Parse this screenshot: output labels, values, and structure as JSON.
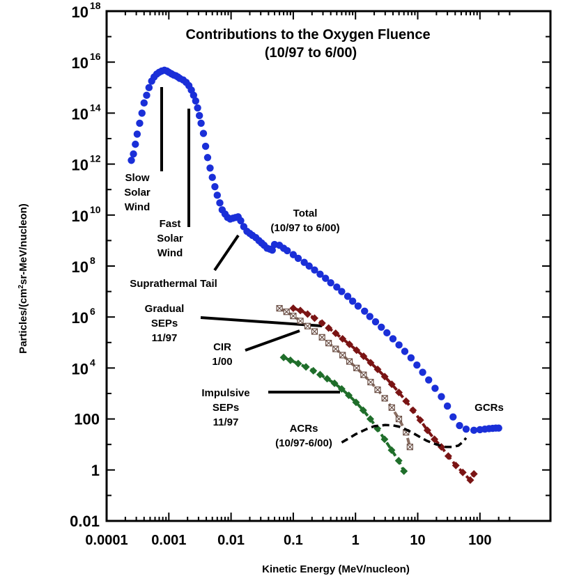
{
  "chart_data": {
    "type": "scatter",
    "title": "Contributions to the Oxygen Fluence",
    "subtitle": "(10/97 to 6/00)",
    "xlabel": "Kinetic Energy (MeV/nucleon)",
    "ylabel": "Particles/(cm²sr-MeV/nucleon)",
    "xscale": "log",
    "yscale": "log",
    "xlim": [
      0.0001,
      300
    ],
    "ylim": [
      0.01,
      1e+18
    ],
    "x_ticks": [
      {
        "value": 0.0001,
        "label": "0.0001"
      },
      {
        "value": 0.001,
        "label": "0.001"
      },
      {
        "value": 0.01,
        "label": "0.01"
      },
      {
        "value": 0.1,
        "label": "0.1"
      },
      {
        "value": 1,
        "label": "1"
      },
      {
        "value": 10,
        "label": "10"
      },
      {
        "value": 100,
        "label": "100"
      }
    ],
    "y_ticks": [
      {
        "value": 0.01,
        "base": "0.01",
        "exp": ""
      },
      {
        "value": 1,
        "base": "1",
        "exp": ""
      },
      {
        "value": 100,
        "base": "100",
        "exp": ""
      },
      {
        "value": 10000,
        "base": "10",
        "exp": "4"
      },
      {
        "value": 1000000,
        "base": "10",
        "exp": "6"
      },
      {
        "value": 100000000,
        "base": "10",
        "exp": "8"
      },
      {
        "value": 10000000000,
        "base": "10",
        "exp": "10"
      },
      {
        "value": 1000000000000,
        "base": "10",
        "exp": "12"
      },
      {
        "value": 100000000000000,
        "base": "10",
        "exp": "14"
      },
      {
        "value": 10000000000000000,
        "base": "10",
        "exp": "16"
      },
      {
        "value": 1000000000000000000,
        "base": "10",
        "exp": "18"
      }
    ],
    "series": [
      {
        "name": "Total (10/97 to 6/00)",
        "color": "#1a2fd8",
        "marker": "circle",
        "points": [
          [
            0.00025,
            1400000000000.0
          ],
          [
            0.00027,
            2500000000000.0
          ],
          [
            0.00029,
            6000000000000.0
          ],
          [
            0.00031,
            15000000000000.0
          ],
          [
            0.00034,
            40000000000000.0
          ],
          [
            0.00037,
            100000000000000.0
          ],
          [
            0.0004,
            250000000000000.0
          ],
          [
            0.00044,
            500000000000000.0
          ],
          [
            0.00048,
            1000000000000000.0
          ],
          [
            0.00053,
            1800000000000000.0
          ],
          [
            0.00058,
            2600000000000000.0
          ],
          [
            0.00064,
            3400000000000000.0
          ],
          [
            0.0007,
            4000000000000000.0
          ],
          [
            0.00077,
            4500000000000000.0
          ],
          [
            0.00085,
            4800000000000000.0
          ],
          [
            0.00093,
            4500000000000000.0
          ],
          [
            0.001,
            4000000000000000.0
          ],
          [
            0.0011,
            3500000000000000.0
          ],
          [
            0.0012,
            3100000000000000.0
          ],
          [
            0.0013,
            2900000000000000.0
          ],
          [
            0.0014,
            2600000000000000.0
          ],
          [
            0.0015,
            2300000000000000.0
          ],
          [
            0.0017,
            2000000000000000.0
          ],
          [
            0.0019,
            1600000000000000.0
          ],
          [
            0.0021,
            1200000000000000.0
          ],
          [
            0.0023,
            800000000000000.0
          ],
          [
            0.0025,
            500000000000000.0
          ],
          [
            0.0027,
            300000000000000.0
          ],
          [
            0.0029,
            160000000000000.0
          ],
          [
            0.0031,
            80000000000000.0
          ],
          [
            0.0033,
            40000000000000.0
          ],
          [
            0.0036,
            16000000000000.0
          ],
          [
            0.0039,
            5000000000000.0
          ],
          [
            0.0042,
            1800000000000.0
          ],
          [
            0.0046,
            700000000000.0
          ],
          [
            0.005,
            300000000000.0
          ],
          [
            0.0055,
            130000000000.0
          ],
          [
            0.006,
            60000000000.0
          ],
          [
            0.0066,
            30000000000.0
          ],
          [
            0.0072,
            16000000000.0
          ],
          [
            0.008,
            11000000000.0
          ],
          [
            0.0088,
            8000000000.0
          ],
          [
            0.0097,
            7000000000.0
          ],
          [
            0.0107,
            7500000000.0
          ],
          [
            0.0118,
            8000000000.0
          ],
          [
            0.013,
            8500000000.0
          ],
          [
            0.0143,
            6000000000.0
          ],
          [
            0.016,
            3500000000.0
          ],
          [
            0.018,
            2300000000.0
          ],
          [
            0.02,
            1900000000.0
          ],
          [
            0.022,
            1600000000.0
          ],
          [
            0.025,
            1300000000.0
          ],
          [
            0.028,
            1000000000.0
          ],
          [
            0.031,
            800000000.0
          ],
          [
            0.034,
            650000000.0
          ],
          [
            0.038,
            500000000.0
          ],
          [
            0.042,
            460000000.0
          ],
          [
            0.046,
            420000000.0
          ],
          [
            0.05,
            700000000.0
          ],
          [
            0.06,
            650000000.0
          ],
          [
            0.07,
            500000000.0
          ],
          [
            0.08,
            400000000.0
          ],
          [
            0.1,
            280000000.0
          ],
          [
            0.12,
            200000000.0
          ],
          [
            0.15,
            140000000.0
          ],
          [
            0.18,
            100000000.0
          ],
          [
            0.22,
            70000000.0
          ],
          [
            0.27,
            48000000.0
          ],
          [
            0.33,
            33000000.0
          ],
          [
            0.4,
            22000000.0
          ],
          [
            0.5,
            15000000.0
          ],
          [
            0.6,
            10000000.0
          ],
          [
            0.75,
            6500000.0
          ],
          [
            0.9,
            4200000.0
          ],
          [
            1.1,
            2700000.0
          ],
          [
            1.4,
            1700000.0
          ],
          [
            1.7,
            1050000.0
          ],
          [
            2.1,
            650000.0
          ],
          [
            2.6,
            400000.0
          ],
          [
            3.2,
            240000.0
          ],
          [
            4,
            140000.0
          ],
          [
            5,
            80000.0
          ],
          [
            6.2,
            45000.0
          ],
          [
            7.8,
            25000.0
          ],
          [
            9.7,
            13000.0
          ],
          [
            12,
            6800.0
          ],
          [
            15,
            3400.0
          ],
          [
            19,
            1600.0
          ],
          [
            24,
            750
          ],
          [
            30,
            320
          ],
          [
            37,
            120
          ],
          [
            47,
            55
          ],
          [
            60,
            40
          ],
          [
            80,
            36
          ],
          [
            100,
            38
          ],
          [
            120,
            40
          ],
          [
            140,
            42
          ],
          [
            160,
            43
          ],
          [
            180,
            44
          ],
          [
            200,
            44
          ]
        ]
      },
      {
        "name": "Gradual SEPs 11/97",
        "color": "#7a1414",
        "marker": "diamond",
        "points": [
          [
            0.1,
            2200000.0
          ],
          [
            0.13,
            1800000.0
          ],
          [
            0.17,
            1300000.0
          ],
          [
            0.22,
            900000.0
          ],
          [
            0.29,
            580000.0
          ],
          [
            0.37,
            370000.0
          ],
          [
            0.48,
            230000.0
          ],
          [
            0.62,
            140000.0
          ],
          [
            0.8,
            85000.0
          ],
          [
            1.04,
            50000.0
          ],
          [
            1.35,
            29000.0
          ],
          [
            1.75,
            16000.0
          ],
          [
            2.27,
            8800.0
          ],
          [
            2.95,
            4600.0
          ],
          [
            3.83,
            2300.0
          ],
          [
            4.98,
            1100.0
          ],
          [
            6.5,
            500
          ],
          [
            8.4,
            220
          ],
          [
            11,
            90
          ],
          [
            14.3,
            36
          ],
          [
            18.6,
            16
          ],
          [
            24,
            8
          ],
          [
            31,
            3.5
          ],
          [
            41,
            1.5
          ],
          [
            53,
            0.8
          ],
          [
            70,
            0.4
          ],
          [
            80,
            0.7
          ]
        ]
      },
      {
        "name": "CIR 1/00",
        "color": "#8a6e62",
        "marker": "crossbox",
        "points": [
          [
            0.06,
            2200000.0
          ],
          [
            0.078,
            1600000.0
          ],
          [
            0.1,
            1100000.0
          ],
          [
            0.13,
            700000.0
          ],
          [
            0.17,
            440000.0
          ],
          [
            0.22,
            270000.0
          ],
          [
            0.29,
            160000.0
          ],
          [
            0.37,
            95000.0
          ],
          [
            0.48,
            56000.0
          ],
          [
            0.62,
            32000.0
          ],
          [
            0.8,
            18000.0
          ],
          [
            1.04,
            10000.0
          ],
          [
            1.35,
            5400.0
          ],
          [
            1.75,
            2800.0
          ],
          [
            2.27,
            1400.0
          ],
          [
            2.95,
            650
          ],
          [
            3.83,
            280
          ],
          [
            4.98,
            100
          ],
          [
            6.5,
            30
          ],
          [
            7.5,
            8
          ]
        ]
      },
      {
        "name": "Impulsive SEPs 11/97",
        "color": "#1f6e2a",
        "marker": "diamond",
        "points": [
          [
            0.07,
            26000.0
          ],
          [
            0.09,
            20000.0
          ],
          [
            0.12,
            15000.0
          ],
          [
            0.16,
            11000.0
          ],
          [
            0.21,
            7800.0
          ],
          [
            0.27,
            5500.0
          ],
          [
            0.35,
            3800.0
          ],
          [
            0.46,
            2500.0
          ],
          [
            0.6,
            1500.0
          ],
          [
            0.78,
            850
          ],
          [
            1.02,
            450
          ],
          [
            1.33,
            220
          ],
          [
            1.73,
            100
          ],
          [
            2.25,
            42
          ],
          [
            2.93,
            16
          ],
          [
            3.8,
            6
          ],
          [
            4.95,
            2.3
          ],
          [
            6,
            0.9
          ]
        ]
      },
      {
        "name": "ACRs (10/97-6/00)",
        "color": "#000000",
        "marker": "dashed-line",
        "points": [
          [
            0.6,
            12
          ],
          [
            0.8,
            18
          ],
          [
            1.0,
            25
          ],
          [
            1.5,
            40
          ],
          [
            2,
            52
          ],
          [
            3,
            58
          ],
          [
            4,
            56
          ],
          [
            5,
            50
          ],
          [
            6,
            42
          ],
          [
            8,
            30
          ],
          [
            10,
            22
          ],
          [
            14,
            14
          ],
          [
            20,
            10
          ],
          [
            28,
            8
          ],
          [
            36,
            8
          ],
          [
            45,
            9
          ],
          [
            52,
            12
          ],
          [
            60,
            18
          ]
        ]
      }
    ],
    "annotations": [
      {
        "lines": [
          "Slow",
          "Solar",
          "Wind"
        ]
      },
      {
        "lines": [
          "Fast",
          "Solar",
          "Wind"
        ]
      },
      {
        "lines": [
          "Suprathermal Tail"
        ]
      },
      {
        "lines": [
          "Total",
          "(10/97 to 6/00)"
        ]
      },
      {
        "lines": [
          "Gradual",
          "SEPs",
          "11/97"
        ]
      },
      {
        "lines": [
          "CIR",
          "1/00"
        ]
      },
      {
        "lines": [
          "Impulsive",
          "SEPs",
          "11/97"
        ]
      },
      {
        "lines": [
          "ACRs",
          "(10/97-6/00)"
        ]
      },
      {
        "lines": [
          "GCRs"
        ]
      }
    ],
    "grid": false,
    "legend": "none"
  }
}
